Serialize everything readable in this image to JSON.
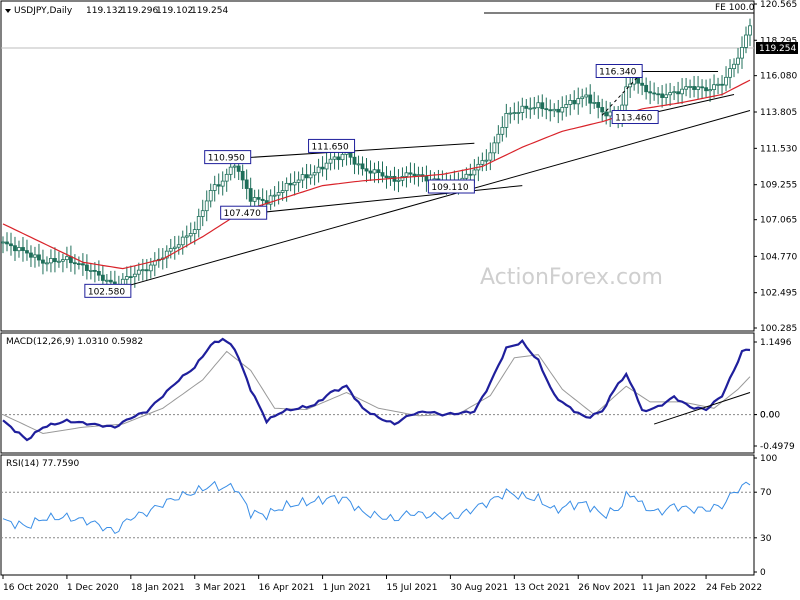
{
  "chart_data": [
    {
      "type": "candlestick",
      "title": "USDJPY,Daily",
      "ohlc": [
        "119.132",
        "119.296",
        "119.102",
        "119.254"
      ],
      "last_price_label": "119.254",
      "fe_label": "FE 100.0",
      "watermark": "ActionForex.com",
      "ylim": [
        100.285,
        120.565
      ],
      "y_ticks": [
        "120.565",
        "118.295",
        "116.080",
        "113.805",
        "111.530",
        "109.255",
        "107.065",
        "104.770",
        "102.495",
        "100.285"
      ],
      "x_ticks": [
        "16 Oct 2020",
        "1 Dec 2020",
        "18 Jan 2021",
        "3 Mar 2021",
        "16 Apr 2021",
        "1 Jun 2021",
        "15 Jul 2021",
        "30 Aug 2021",
        "13 Oct 2021",
        "26 Nov 2021",
        "11 Jan 2022",
        "24 Feb 2022"
      ],
      "price_labels": [
        {
          "text": "102.580",
          "date_index": 28,
          "value": 102.58
        },
        {
          "text": "107.470",
          "date_index": 62,
          "value": 107.47
        },
        {
          "text": "110.950",
          "date_index": 58,
          "value": 110.95
        },
        {
          "text": "111.650",
          "date_index": 84,
          "value": 111.65
        },
        {
          "text": "109.110",
          "date_index": 114,
          "value": 109.11
        },
        {
          "text": "116.340",
          "date_index": 156,
          "value": 116.34
        },
        {
          "text": "113.460",
          "date_index": 160,
          "value": 113.46
        }
      ],
      "series": [
        {
          "name": "Close",
          "anchors": [
            [
              0,
              105.6
            ],
            [
              6,
              105.0
            ],
            [
              10,
              104.4
            ],
            [
              16,
              104.6
            ],
            [
              22,
              103.9
            ],
            [
              28,
              102.9
            ],
            [
              32,
              103.6
            ],
            [
              36,
              104.0
            ],
            [
              40,
              104.8
            ],
            [
              44,
              105.6
            ],
            [
              48,
              106.5
            ],
            [
              52,
              108.9
            ],
            [
              55,
              109.5
            ],
            [
              58,
              110.6
            ],
            [
              62,
              108.4
            ],
            [
              66,
              108.2
            ],
            [
              70,
              109.0
            ],
            [
              74,
              109.6
            ],
            [
              78,
              110.0
            ],
            [
              82,
              110.8
            ],
            [
              86,
              111.2
            ],
            [
              90,
              110.2
            ],
            [
              94,
              110.0
            ],
            [
              98,
              109.5
            ],
            [
              102,
              110.0
            ],
            [
              106,
              109.6
            ],
            [
              110,
              109.4
            ],
            [
              114,
              109.4
            ],
            [
              118,
              110.2
            ],
            [
              122,
              111.2
            ],
            [
              126,
              113.6
            ],
            [
              130,
              114.0
            ],
            [
              134,
              114.2
            ],
            [
              138,
              113.8
            ],
            [
              142,
              114.4
            ],
            [
              146,
              114.8
            ],
            [
              150,
              113.8
            ],
            [
              154,
              113.5
            ],
            [
              156,
              115.2
            ],
            [
              158,
              116.0
            ],
            [
              160,
              115.3
            ],
            [
              164,
              114.8
            ],
            [
              168,
              115.0
            ],
            [
              172,
              115.4
            ],
            [
              176,
              115.2
            ],
            [
              180,
              115.6
            ],
            [
              183,
              116.8
            ],
            [
              185,
              117.8
            ],
            [
              187,
              119.254
            ]
          ]
        },
        {
          "name": "MA",
          "anchors": [
            [
              0,
              106.8
            ],
            [
              10,
              105.6
            ],
            [
              20,
              104.4
            ],
            [
              30,
              104.0
            ],
            [
              40,
              104.6
            ],
            [
              50,
              106.0
            ],
            [
              60,
              107.6
            ],
            [
              70,
              108.4
            ],
            [
              80,
              109.2
            ],
            [
              90,
              109.5
            ],
            [
              100,
              109.7
            ],
            [
              110,
              109.9
            ],
            [
              120,
              110.4
            ],
            [
              130,
              111.6
            ],
            [
              140,
              112.6
            ],
            [
              150,
              113.2
            ],
            [
              160,
              114.0
            ],
            [
              170,
              114.4
            ],
            [
              180,
              114.9
            ],
            [
              187,
              115.8
            ]
          ]
        },
        {
          "name": "MACD",
          "anchors": [
            [
              0,
              -0.1
            ],
            [
              6,
              -0.4
            ],
            [
              10,
              -0.2
            ],
            [
              16,
              -0.1
            ],
            [
              22,
              -0.15
            ],
            [
              28,
              -0.2
            ],
            [
              32,
              -0.05
            ],
            [
              36,
              0.05
            ],
            [
              40,
              0.3
            ],
            [
              44,
              0.55
            ],
            [
              48,
              0.75
            ],
            [
              52,
              1.1
            ],
            [
              55,
              1.2
            ],
            [
              58,
              1.05
            ],
            [
              62,
              0.4
            ],
            [
              66,
              -0.1
            ],
            [
              70,
              0.05
            ],
            [
              74,
              0.1
            ],
            [
              78,
              0.15
            ],
            [
              82,
              0.35
            ],
            [
              86,
              0.45
            ],
            [
              90,
              0.1
            ],
            [
              94,
              -0.05
            ],
            [
              98,
              -0.15
            ],
            [
              102,
              0.0
            ],
            [
              106,
              0.05
            ],
            [
              110,
              0.0
            ],
            [
              114,
              0.02
            ],
            [
              118,
              0.05
            ],
            [
              122,
              0.5
            ],
            [
              126,
              1.05
            ],
            [
              130,
              1.15
            ],
            [
              134,
              0.85
            ],
            [
              138,
              0.3
            ],
            [
              142,
              0.1
            ],
            [
              146,
              -0.05
            ],
            [
              150,
              0.05
            ],
            [
              154,
              0.5
            ],
            [
              156,
              0.62
            ],
            [
              158,
              0.4
            ],
            [
              160,
              0.05
            ],
            [
              164,
              0.12
            ],
            [
              168,
              0.28
            ],
            [
              172,
              0.12
            ],
            [
              176,
              0.08
            ],
            [
              180,
              0.3
            ],
            [
              183,
              0.7
            ],
            [
              185,
              1.0
            ],
            [
              187,
              1.03
            ]
          ]
        },
        {
          "name": "Signal",
          "anchors": [
            [
              0,
              0.0
            ],
            [
              10,
              -0.3
            ],
            [
              20,
              -0.2
            ],
            [
              30,
              -0.15
            ],
            [
              40,
              0.1
            ],
            [
              50,
              0.55
            ],
            [
              56,
              1.0
            ],
            [
              62,
              0.7
            ],
            [
              68,
              0.1
            ],
            [
              76,
              0.08
            ],
            [
              86,
              0.35
            ],
            [
              94,
              0.1
            ],
            [
              104,
              -0.02
            ],
            [
              114,
              0.01
            ],
            [
              122,
              0.3
            ],
            [
              128,
              0.9
            ],
            [
              134,
              0.95
            ],
            [
              140,
              0.4
            ],
            [
              148,
              0.0
            ],
            [
              156,
              0.45
            ],
            [
              162,
              0.2
            ],
            [
              170,
              0.2
            ],
            [
              178,
              0.1
            ],
            [
              184,
              0.4
            ],
            [
              187,
              0.6
            ]
          ]
        },
        {
          "name": "RSI",
          "anchors": [
            [
              0,
              45
            ],
            [
              6,
              40
            ],
            [
              10,
              47
            ],
            [
              16,
              48
            ],
            [
              22,
              44
            ],
            [
              28,
              35
            ],
            [
              32,
              48
            ],
            [
              36,
              52
            ],
            [
              40,
              60
            ],
            [
              44,
              66
            ],
            [
              48,
              70
            ],
            [
              52,
              76
            ],
            [
              55,
              74
            ],
            [
              58,
              75
            ],
            [
              62,
              52
            ],
            [
              66,
              50
            ],
            [
              70,
              57
            ],
            [
              74,
              60
            ],
            [
              78,
              62
            ],
            [
              82,
              65
            ],
            [
              86,
              64
            ],
            [
              90,
              52
            ],
            [
              94,
              49
            ],
            [
              98,
              46
            ],
            [
              102,
              52
            ],
            [
              106,
              50
            ],
            [
              110,
              49
            ],
            [
              114,
              49
            ],
            [
              118,
              56
            ],
            [
              122,
              62
            ],
            [
              126,
              70
            ],
            [
              130,
              66
            ],
            [
              134,
              64
            ],
            [
              138,
              54
            ],
            [
              142,
              59
            ],
            [
              146,
              60
            ],
            [
              150,
              50
            ],
            [
              154,
              55
            ],
            [
              156,
              66
            ],
            [
              158,
              68
            ],
            [
              160,
              58
            ],
            [
              164,
              52
            ],
            [
              168,
              58
            ],
            [
              172,
              55
            ],
            [
              176,
              55
            ],
            [
              180,
              58
            ],
            [
              183,
              70
            ],
            [
              185,
              75
            ],
            [
              187,
              77.76
            ]
          ]
        }
      ]
    },
    {
      "type": "line",
      "title": "MACD(12,26,9) 1.0310 0.5982",
      "ylim": [
        -0.4979,
        1.1496
      ],
      "y_ticks": [
        "1.1496",
        "0.00",
        "0.0",
        "-0.4979"
      ]
    },
    {
      "type": "line",
      "title": "RSI(14) 77.7590",
      "ylim": [
        0,
        100
      ],
      "y_ticks": [
        "100",
        "70",
        "30",
        "0"
      ],
      "levels": [
        70,
        30
      ]
    }
  ],
  "colors": {
    "candle": "#1f6f5a",
    "ma": "#d9232a",
    "macd": "#1f1f9c",
    "signal": "#999999",
    "rsi": "#3a8ee6",
    "trend": "#000000",
    "label_border": "#1f1f9c"
  }
}
